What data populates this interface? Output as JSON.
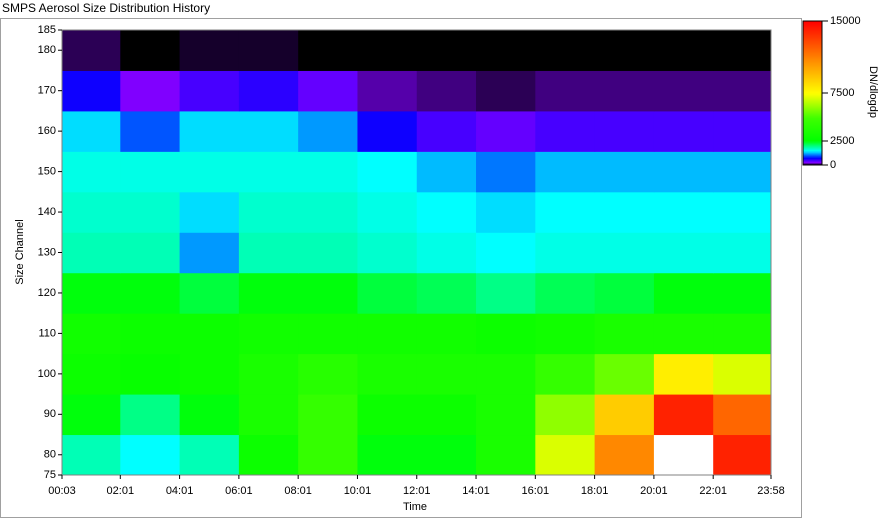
{
  "chart_data": {
    "type": "heatmap",
    "title": "SMPS Aerosol Size Distribution History",
    "xlabel": "Time",
    "ylabel": "Size Channel",
    "colorbar_label": "DN/dlogdp",
    "xlim": [
      3,
      1438
    ],
    "xticks": [
      {
        "value": 3,
        "label": "00:03"
      },
      {
        "value": 121,
        "label": "02:01"
      },
      {
        "value": 241,
        "label": "04:01"
      },
      {
        "value": 361,
        "label": "06:01"
      },
      {
        "value": 481,
        "label": "08:01"
      },
      {
        "value": 601,
        "label": "10:01"
      },
      {
        "value": 721,
        "label": "12:01"
      },
      {
        "value": 841,
        "label": "14:01"
      },
      {
        "value": 961,
        "label": "16:01"
      },
      {
        "value": 1081,
        "label": "18:01"
      },
      {
        "value": 1201,
        "label": "20:01"
      },
      {
        "value": 1321,
        "label": "22:01"
      },
      {
        "value": 1438,
        "label": "23:58"
      }
    ],
    "ylim": [
      75,
      185
    ],
    "yticks": [
      75,
      80,
      90,
      100,
      110,
      120,
      130,
      140,
      150,
      160,
      170,
      180,
      185
    ],
    "clim": [
      0,
      15000
    ],
    "cticks": [
      0,
      2500,
      7500,
      15000
    ],
    "colormap": [
      "#000000",
      "#8000ff",
      "#0000ff",
      "#00ffff",
      "#00ff00",
      "#40ff00",
      "#ffff00",
      "#ff8000",
      "#ff0000"
    ],
    "above_color": "#ffffff",
    "xbins": [
      3,
      121,
      241,
      361,
      481,
      601,
      721,
      841,
      961,
      1081,
      1201,
      1321,
      1438
    ],
    "ybins": [
      75,
      85,
      95,
      105,
      115,
      125,
      135,
      145,
      155,
      165,
      175,
      185
    ],
    "z": [
      [
        1800,
        1500,
        1800,
        3000,
        4500,
        2500,
        2500,
        3500,
        7000,
        11000,
        16000,
        14000
      ],
      [
        2500,
        2000,
        2500,
        3500,
        4500,
        3000,
        3000,
        3500,
        6000,
        9000,
        14000,
        12000
      ],
      [
        3000,
        2800,
        3000,
        3500,
        4000,
        3500,
        3500,
        3500,
        4500,
        5500,
        8000,
        7000
      ],
      [
        3200,
        3000,
        3000,
        3200,
        3200,
        3200,
        3200,
        3000,
        3200,
        3500,
        3500,
        3500
      ],
      [
        2500,
        2500,
        2300,
        2500,
        2500,
        2300,
        2200,
        2000,
        2200,
        2300,
        2500,
        2500
      ],
      [
        1800,
        1800,
        1200,
        1800,
        1800,
        1700,
        1600,
        1500,
        1600,
        1600,
        1600,
        1600
      ],
      [
        1700,
        1700,
        1400,
        1700,
        1700,
        1600,
        1500,
        1400,
        1500,
        1500,
        1500,
        1500
      ],
      [
        1600,
        1600,
        1600,
        1600,
        1600,
        1500,
        1300,
        1100,
        1300,
        1300,
        1300,
        1300
      ],
      [
        1400,
        1000,
        1400,
        1400,
        1200,
        700,
        500,
        400,
        500,
        500,
        500,
        500
      ],
      [
        700,
        300,
        500,
        600,
        400,
        200,
        150,
        100,
        150,
        150,
        150,
        150
      ],
      [
        100,
        0,
        50,
        50,
        0,
        0,
        0,
        0,
        0,
        0,
        0,
        0
      ]
    ]
  }
}
